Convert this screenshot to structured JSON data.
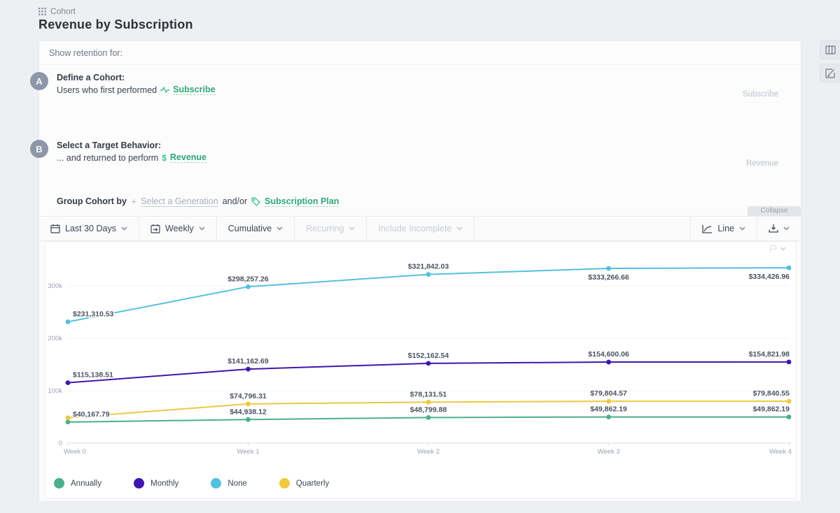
{
  "header": {
    "breadcrumb": "Cohort",
    "title": "Revenue by Subscription"
  },
  "panel": {
    "show_retention_label": "Show retention for:",
    "step_a": {
      "badge": "A",
      "title": "Define a Cohort:",
      "prefix": "Users who first performed",
      "event": "Subscribe",
      "side_label": "Subscribe"
    },
    "step_b": {
      "badge": "B",
      "title": "Select a Target Behavior:",
      "prefix": "... and returned to perform",
      "event": "Revenue",
      "side_label": "Revenue"
    },
    "group_row": {
      "label": "Group Cohort by",
      "generation_link": "Select a Generation",
      "conjunction": "and/or",
      "plan_link": "Subscription Plan"
    }
  },
  "toolbar": {
    "items": [
      {
        "label": "Last 30 Days",
        "icon": "calendar",
        "enabled": true,
        "dropdown": true
      },
      {
        "label": "Weekly",
        "icon": "calendar-interval",
        "enabled": true,
        "dropdown": true
      },
      {
        "label": "Cumulative",
        "icon": "",
        "enabled": true,
        "dropdown": true
      },
      {
        "label": "Recurring",
        "icon": "",
        "enabled": false,
        "dropdown": true
      },
      {
        "label": "Include Incomplete",
        "icon": "",
        "enabled": false,
        "dropdown": true
      }
    ],
    "chart_type_label": "Line",
    "collapse_label": "Collapse"
  },
  "chart_data": {
    "type": "line",
    "x": [
      "Week 0",
      "Week 1",
      "Week 2",
      "Week 3",
      "Week 4"
    ],
    "y_ticks": [
      {
        "label": "0",
        "value": 0
      },
      {
        "label": "100k",
        "value": 100000
      },
      {
        "label": "200k",
        "value": 200000
      },
      {
        "label": "300k",
        "value": 300000
      }
    ],
    "ylim": [
      0,
      360000
    ],
    "grid": true,
    "legend_position": "bottom",
    "series": [
      {
        "name": "Annually",
        "color": "#4bae8d",
        "values": [
          40167.79,
          44938.12,
          48799.88,
          49862.19,
          49862.19
        ],
        "labels": [
          "$40,167.79",
          "$44,938.12",
          "$48,799.88",
          "$49,862.19",
          "$49,862.19"
        ],
        "label_below": [
          false,
          false,
          false,
          false,
          false
        ]
      },
      {
        "name": "Monthly",
        "color": "#4016ae",
        "values": [
          115138.51,
          141162.69,
          152162.54,
          154600.06,
          154821.98
        ],
        "labels": [
          "$115,138.51",
          "$141,162.69",
          "$152,162.54",
          "$154,600.06",
          "$154,821.98"
        ],
        "label_below": [
          false,
          false,
          false,
          false,
          false
        ]
      },
      {
        "name": "None",
        "color": "#55c0dd",
        "values": [
          231310.53,
          298257.26,
          321842.03,
          333266.66,
          334426.96
        ],
        "labels": [
          "$231,310.53",
          "$298,257.26",
          "$321,842.03",
          "$333,266.66",
          "$334,426.96"
        ],
        "label_below": [
          false,
          false,
          false,
          true,
          true
        ]
      },
      {
        "name": "Quarterly",
        "color": "#eec83e",
        "values": [
          48500,
          74796.31,
          78131.51,
          79804.57,
          79840.55
        ],
        "labels": [
          null,
          "$74,796.31",
          "$78,131.51",
          "$79,804.57",
          "$79,840.55"
        ],
        "label_below": [
          false,
          false,
          false,
          false,
          false
        ]
      }
    ]
  }
}
